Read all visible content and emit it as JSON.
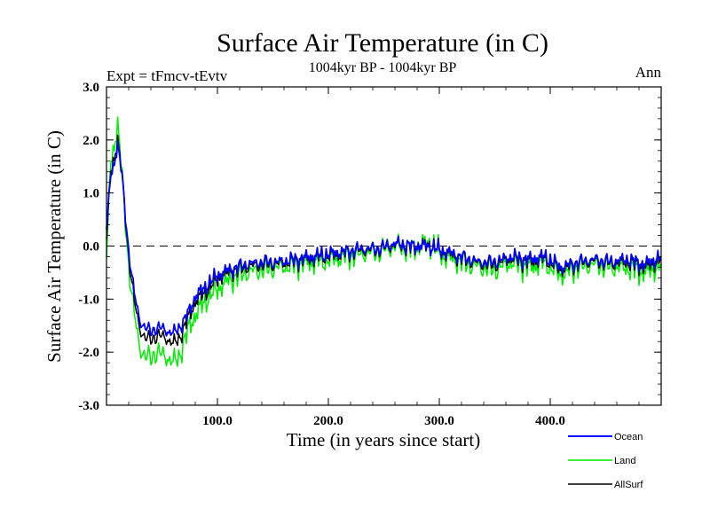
{
  "chart_data": {
    "type": "line",
    "title": "Surface Air Temperature (in C)",
    "subtitle": "1004kyr BP - 1004kyr BP",
    "left_label": "Expt = tFmcv-tEvtv",
    "right_label": "Ann",
    "xlabel": "Time (in years since start)",
    "ylabel": "Surface Air Temperature (in C)",
    "xlim": [
      0,
      500
    ],
    "ylim": [
      -3.0,
      3.0
    ],
    "x_ticks": [
      100,
      200,
      300,
      400
    ],
    "x_tick_labels": [
      "100.0",
      "200.0",
      "300.0",
      "400.0"
    ],
    "y_ticks": [
      -3,
      -2,
      -1,
      0,
      1,
      2,
      3
    ],
    "y_tick_labels": [
      "-3.0",
      "-2.0",
      "-1.0",
      "0.0",
      "1.0",
      "2.0",
      "3.0"
    ],
    "reference_line": 0.0,
    "legend_position": "bottom-right",
    "series": [
      {
        "name": "Ocean",
        "color": "#0000ff",
        "x": [
          0,
          3,
          6,
          10,
          13,
          17,
          20,
          25,
          30,
          35,
          40,
          45,
          50,
          55,
          60,
          65,
          70,
          75,
          80,
          90,
          100,
          110,
          125,
          140,
          155,
          170,
          185,
          200,
          215,
          230,
          245,
          260,
          275,
          290,
          305,
          320,
          335,
          350,
          365,
          380,
          395,
          410,
          425,
          440,
          455,
          470,
          485,
          500
        ],
        "values": [
          0.2,
          1.2,
          1.5,
          1.9,
          1.5,
          0.6,
          -0.1,
          -0.9,
          -1.4,
          -1.55,
          -1.6,
          -1.55,
          -1.55,
          -1.6,
          -1.65,
          -1.55,
          -1.4,
          -1.2,
          -0.95,
          -0.75,
          -0.55,
          -0.45,
          -0.35,
          -0.3,
          -0.3,
          -0.25,
          -0.2,
          -0.15,
          -0.1,
          -0.05,
          -0.05,
          0.05,
          0.0,
          0.0,
          -0.1,
          -0.2,
          -0.3,
          -0.3,
          -0.2,
          -0.25,
          -0.2,
          -0.4,
          -0.3,
          -0.25,
          -0.3,
          -0.25,
          -0.35,
          -0.2
        ]
      },
      {
        "name": "Land",
        "color": "#00ee00",
        "x": [
          0,
          3,
          6,
          10,
          13,
          17,
          20,
          25,
          30,
          35,
          40,
          45,
          50,
          55,
          60,
          65,
          70,
          75,
          80,
          90,
          100,
          110,
          125,
          140,
          155,
          170,
          185,
          200,
          215,
          230,
          245,
          260,
          275,
          290,
          305,
          320,
          335,
          350,
          365,
          380,
          395,
          410,
          425,
          440,
          455,
          470,
          485,
          500
        ],
        "values": [
          -0.4,
          1.4,
          1.8,
          2.3,
          1.6,
          0.5,
          -0.4,
          -1.3,
          -1.9,
          -2.1,
          -2.1,
          -2.0,
          -2.05,
          -2.1,
          -2.2,
          -2.1,
          -1.8,
          -1.5,
          -1.3,
          -1.0,
          -0.8,
          -0.65,
          -0.5,
          -0.45,
          -0.4,
          -0.35,
          -0.3,
          -0.25,
          -0.2,
          -0.15,
          -0.1,
          0.0,
          -0.05,
          0.05,
          -0.2,
          -0.3,
          -0.4,
          -0.45,
          -0.3,
          -0.4,
          -0.3,
          -0.55,
          -0.4,
          -0.35,
          -0.4,
          -0.4,
          -0.5,
          -0.35
        ]
      },
      {
        "name": "AllSurf",
        "color": "#000000",
        "x": [
          0,
          3,
          6,
          10,
          13,
          17,
          20,
          25,
          30,
          35,
          40,
          45,
          50,
          55,
          60,
          65,
          70,
          75,
          80,
          90,
          100,
          110,
          125,
          140,
          155,
          170,
          185,
          200,
          215,
          230,
          245,
          260,
          275,
          290,
          305,
          320,
          335,
          350,
          365,
          380,
          395,
          410,
          425,
          440,
          455,
          470,
          485,
          500
        ],
        "values": [
          0.0,
          1.25,
          1.6,
          2.0,
          1.55,
          0.55,
          -0.2,
          -1.05,
          -1.55,
          -1.75,
          -1.75,
          -1.7,
          -1.7,
          -1.75,
          -1.85,
          -1.75,
          -1.55,
          -1.3,
          -1.05,
          -0.85,
          -0.62,
          -0.5,
          -0.4,
          -0.35,
          -0.33,
          -0.28,
          -0.23,
          -0.18,
          -0.13,
          -0.08,
          -0.07,
          0.03,
          -0.02,
          0.02,
          -0.13,
          -0.23,
          -0.33,
          -0.35,
          -0.23,
          -0.3,
          -0.23,
          -0.45,
          -0.33,
          -0.28,
          -0.33,
          -0.3,
          -0.4,
          -0.25
        ]
      }
    ]
  }
}
